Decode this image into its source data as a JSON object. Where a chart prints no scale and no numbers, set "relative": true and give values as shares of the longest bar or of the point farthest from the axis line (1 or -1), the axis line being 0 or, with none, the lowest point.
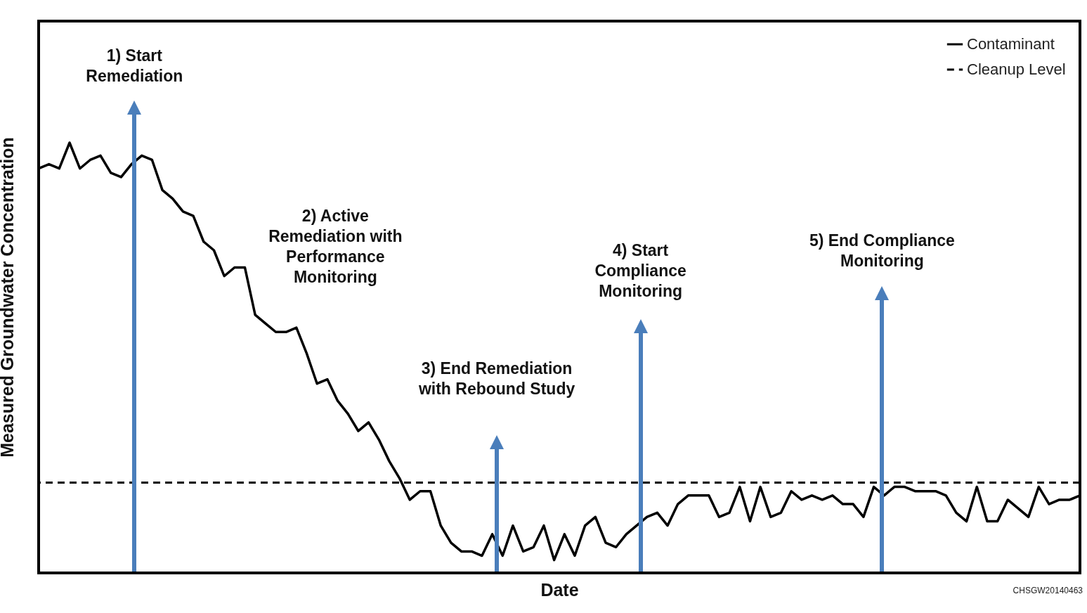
{
  "chart_data": {
    "type": "line",
    "relative": true,
    "xlabel": "Date",
    "ylabel": "Measured Groundwater Concentration",
    "legend": "top right",
    "grid": false,
    "marker": "none",
    "line_style": "solid",
    "categories": [
      null,
      null,
      null,
      null,
      null,
      null,
      null,
      null,
      null,
      null,
      null,
      null,
      null,
      null,
      null,
      null,
      null,
      null,
      null,
      null,
      null,
      null,
      null,
      null,
      null,
      null,
      null,
      null,
      null,
      null,
      null,
      null,
      null,
      null,
      null,
      null,
      null,
      null,
      null,
      null,
      null,
      null,
      null,
      null,
      null,
      null,
      null,
      null,
      null,
      null,
      null,
      null,
      null,
      null,
      null,
      null,
      null,
      null,
      null,
      null,
      null,
      null,
      null,
      null,
      null,
      null,
      null,
      null,
      null,
      null,
      null,
      null,
      null,
      null,
      null,
      null,
      null,
      null,
      null,
      null,
      null,
      null,
      null,
      null,
      null,
      null,
      null,
      null,
      null,
      null,
      null,
      null,
      null,
      null,
      null,
      null,
      null,
      null,
      null,
      null,
      null,
      null
    ],
    "series": [
      {
        "name": "Contaminant",
        "color": "#000000",
        "values": [
          0.94,
          0.95,
          0.94,
          1.0,
          0.94,
          0.96,
          0.97,
          0.93,
          0.92,
          0.95,
          0.97,
          0.96,
          0.89,
          0.87,
          0.84,
          0.83,
          0.77,
          0.75,
          0.69,
          0.71,
          0.71,
          0.6,
          0.58,
          0.56,
          0.56,
          0.57,
          0.51,
          0.44,
          0.45,
          0.4,
          0.37,
          0.33,
          0.35,
          0.31,
          0.26,
          0.22,
          0.17,
          0.19,
          0.19,
          0.11,
          0.07,
          0.05,
          0.05,
          0.04,
          0.09,
          0.04,
          0.11,
          0.05,
          0.06,
          0.11,
          0.03,
          0.09,
          0.04,
          0.11,
          0.13,
          0.07,
          0.06,
          0.09,
          0.11,
          0.13,
          0.14,
          0.11,
          0.16,
          0.18,
          0.18,
          0.18,
          0.13,
          0.14,
          0.2,
          0.12,
          0.2,
          0.13,
          0.14,
          0.19,
          0.17,
          0.18,
          0.17,
          0.18,
          0.16,
          0.16,
          0.13,
          0.2,
          0.18,
          0.2,
          0.2,
          0.19,
          0.19,
          0.19,
          0.18,
          0.14,
          0.12,
          0.2,
          0.12,
          0.12,
          0.17,
          0.15,
          0.13,
          0.2,
          0.16,
          0.17,
          0.17,
          0.18
        ]
      }
    ],
    "ref_lines": [
      {
        "axis": "y",
        "value": 0.21,
        "label": "Cleanup Level",
        "color": "#000000",
        "line_style": "dashed"
      }
    ],
    "annotations": [
      "1) Start Remediation",
      "2) Active Remediation with Performance Monitoring",
      "3) End Remediation with Rebound Study",
      "4) Start Compliance Monitoring",
      "5) End Compliance Monitoring",
      "CHSGW20140463"
    ]
  }
}
